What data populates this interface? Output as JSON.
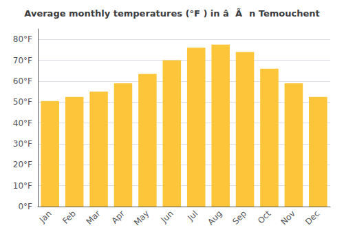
{
  "chart_data": {
    "type": "bar",
    "title": "Average monthly temperatures (°F ) in â  Ãn Temouchent",
    "categories": [
      "Jan",
      "Feb",
      "Mar",
      "Apr",
      "May",
      "Jun",
      "Jul",
      "Aug",
      "Sep",
      "Oct",
      "Nov",
      "Dec"
    ],
    "values": [
      50.5,
      52.5,
      55.0,
      59.0,
      63.5,
      70.0,
      76.0,
      77.5,
      74.0,
      66.0,
      59.0,
      52.5
    ],
    "color": "#FDC63A",
    "ylim": [
      0,
      85
    ],
    "yticks": [
      {
        "value": 0,
        "label": "0°F"
      },
      {
        "value": 10,
        "label": "10°F"
      },
      {
        "value": 20,
        "label": "20°F"
      },
      {
        "value": 30,
        "label": "30°F"
      },
      {
        "value": 40,
        "label": "40°F"
      },
      {
        "value": 50,
        "label": "50°F"
      },
      {
        "value": 60,
        "label": "60°F"
      },
      {
        "value": 70,
        "label": "70°F"
      },
      {
        "value": 80,
        "label": "80°F"
      }
    ],
    "grid": true
  }
}
